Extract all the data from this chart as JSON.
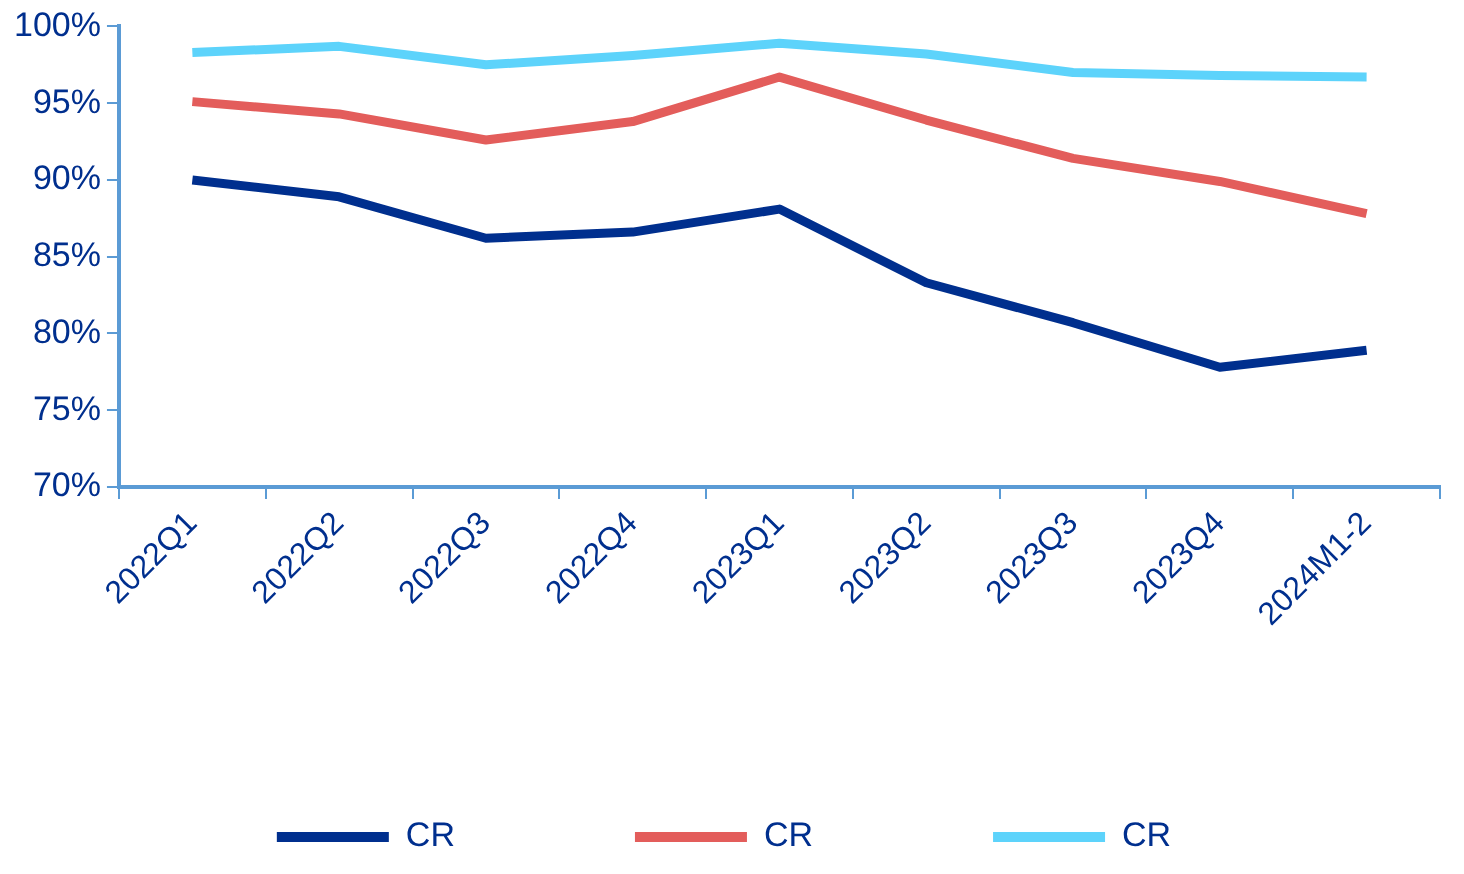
{
  "chart_data": {
    "type": "line",
    "categories": [
      "2022Q1",
      "2022Q2",
      "2022Q3",
      "2022Q4",
      "2023Q1",
      "2023Q2",
      "2023Q3",
      "2023Q4",
      "2024M1-2"
    ],
    "series": [
      {
        "name": "CR",
        "color": "#002f8e",
        "values": [
          90.0,
          88.9,
          86.2,
          86.6,
          88.1,
          83.3,
          80.7,
          77.8,
          78.9
        ]
      },
      {
        "name": "CR",
        "color": "#e35d5b",
        "values": [
          95.1,
          94.3,
          92.6,
          93.8,
          96.7,
          93.9,
          91.4,
          89.9,
          87.8
        ]
      },
      {
        "name": "CR",
        "color": "#5dd3fb",
        "values": [
          98.3,
          98.7,
          97.5,
          98.1,
          98.9,
          98.2,
          97.0,
          96.8,
          96.7
        ]
      }
    ],
    "ylim": [
      70,
      100
    ],
    "yticks": [
      {
        "value": 70,
        "label": "70%"
      },
      {
        "value": 75,
        "label": "75%"
      },
      {
        "value": 80,
        "label": "80%"
      },
      {
        "value": 85,
        "label": "85%"
      },
      {
        "value": 90,
        "label": "90%"
      },
      {
        "value": 95,
        "label": "95%"
      },
      {
        "value": 100,
        "label": "100%"
      }
    ],
    "grid": false,
    "legend": "bottom",
    "marker": "none",
    "line_style": "solid"
  }
}
